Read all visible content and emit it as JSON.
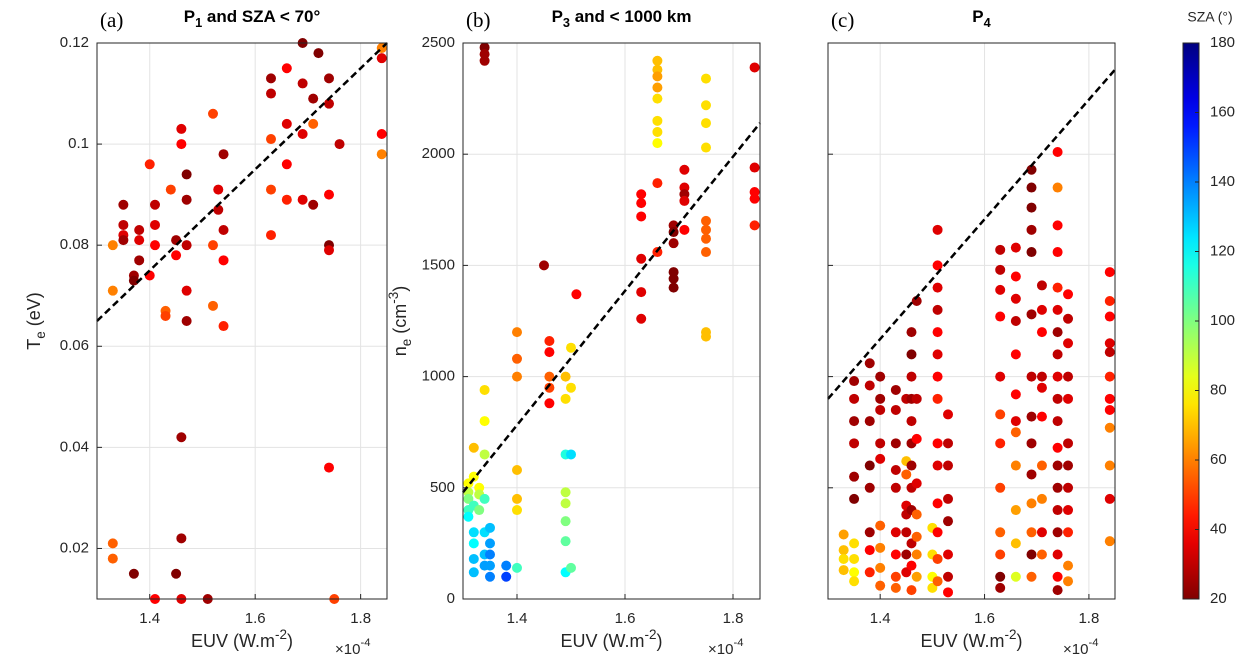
{
  "chart_data": [
    {
      "type": "scatter",
      "panel_label": "(a)",
      "title": [
        {
          "text": "P"
        },
        {
          "text": "1",
          "shift": "sub"
        },
        {
          "text": " and SZA < 70°"
        }
      ],
      "ylabel": [
        {
          "text": "T"
        },
        {
          "text": "e",
          "shift": "sub"
        },
        {
          "text": " (eV)"
        }
      ],
      "xlabel": [
        {
          "text": "EUV (W.m"
        },
        {
          "text": "-2",
          "shift": "sup"
        },
        {
          "text": ")"
        }
      ],
      "x_multiplier": [
        {
          "text": "×10"
        },
        {
          "text": "-4",
          "shift": "sup"
        }
      ],
      "xlim": [
        1.3,
        1.85
      ],
      "xticks": [
        1.4,
        1.6,
        1.8
      ],
      "ylim": [
        0.01,
        0.12
      ],
      "yticks": [
        0.02,
        0.04,
        0.06,
        0.08,
        0.1,
        0.12
      ],
      "ytick_labels": true,
      "grid": true,
      "fit_line": {
        "x": [
          1.3,
          1.85
        ],
        "y": [
          0.065,
          0.12
        ]
      },
      "x": [
        1.33,
        1.33,
        1.33,
        1.33,
        1.35,
        1.35,
        1.35,
        1.35,
        1.37,
        1.37,
        1.37,
        1.38,
        1.38,
        1.38,
        1.4,
        1.4,
        1.41,
        1.41,
        1.41,
        1.41,
        1.43,
        1.43,
        1.44,
        1.45,
        1.45,
        1.45,
        1.46,
        1.46,
        1.46,
        1.46,
        1.46,
        1.47,
        1.47,
        1.47,
        1.47,
        1.47,
        1.51,
        1.52,
        1.52,
        1.52,
        1.53,
        1.53,
        1.54,
        1.54,
        1.54,
        1.54,
        1.63,
        1.63,
        1.63,
        1.63,
        1.63,
        1.66,
        1.66,
        1.66,
        1.66,
        1.69,
        1.69,
        1.69,
        1.69,
        1.71,
        1.71,
        1.71,
        1.72,
        1.74,
        1.74,
        1.74,
        1.74,
        1.74,
        1.74,
        1.75,
        1.76,
        1.84,
        1.84,
        1.84,
        1.84
      ],
      "values": [
        0.08,
        0.071,
        0.021,
        0.018,
        0.088,
        0.084,
        0.082,
        0.081,
        0.074,
        0.073,
        0.015,
        0.083,
        0.081,
        0.077,
        0.096,
        0.074,
        0.088,
        0.084,
        0.08,
        0.01,
        0.067,
        0.066,
        0.091,
        0.081,
        0.078,
        0.015,
        0.103,
        0.1,
        0.042,
        0.022,
        0.01,
        0.094,
        0.089,
        0.08,
        0.071,
        0.065,
        0.01,
        0.106,
        0.08,
        0.068,
        0.091,
        0.087,
        0.098,
        0.083,
        0.077,
        0.064,
        0.113,
        0.11,
        0.101,
        0.091,
        0.082,
        0.115,
        0.104,
        0.096,
        0.089,
        0.12,
        0.112,
        0.102,
        0.089,
        0.109,
        0.104,
        0.088,
        0.118,
        0.113,
        0.108,
        0.09,
        0.08,
        0.079,
        0.036,
        0.01,
        0.1,
        0.102,
        0.098,
        0.117,
        0.119
      ],
      "sza": [
        60,
        60,
        55,
        55,
        25,
        30,
        35,
        25,
        25,
        20,
        20,
        30,
        35,
        25,
        45,
        40,
        30,
        35,
        40,
        40,
        55,
        50,
        50,
        25,
        40,
        20,
        35,
        40,
        25,
        25,
        35,
        20,
        25,
        30,
        35,
        25,
        25,
        50,
        50,
        55,
        35,
        30,
        25,
        30,
        40,
        45,
        25,
        30,
        50,
        50,
        45,
        40,
        35,
        40,
        45,
        20,
        30,
        35,
        35,
        25,
        55,
        25,
        20,
        25,
        30,
        40,
        20,
        35,
        40,
        50,
        30,
        40,
        60,
        35,
        60
      ]
    },
    {
      "type": "scatter",
      "panel_label": "(b)",
      "title": [
        {
          "text": "P"
        },
        {
          "text": "3",
          "shift": "sub"
        },
        {
          "text": " and < 1000 km"
        }
      ],
      "ylabel": [
        {
          "text": "n"
        },
        {
          "text": "e",
          "shift": "sub"
        },
        {
          "text": " (cm"
        },
        {
          "text": "-3",
          "shift": "sup"
        },
        {
          "text": ")"
        }
      ],
      "xlabel": [
        {
          "text": "EUV (W.m"
        },
        {
          "text": "-2",
          "shift": "sup"
        },
        {
          "text": ")"
        }
      ],
      "x_multiplier": [
        {
          "text": "×10"
        },
        {
          "text": "-4",
          "shift": "sup"
        }
      ],
      "xlim": [
        1.3,
        1.85
      ],
      "xticks": [
        1.4,
        1.6,
        1.8
      ],
      "ylim": [
        0,
        2500
      ],
      "yticks": [
        0,
        500,
        1000,
        1500,
        2000,
        2500
      ],
      "ytick_labels": true,
      "grid": true,
      "fit_line": {
        "x": [
          1.3,
          1.85
        ],
        "y": [
          480,
          2140
        ]
      },
      "x": [
        1.31,
        1.31,
        1.31,
        1.31,
        1.31,
        1.32,
        1.32,
        1.32,
        1.32,
        1.32,
        1.32,
        1.32,
        1.33,
        1.33,
        1.33,
        1.34,
        1.34,
        1.34,
        1.34,
        1.34,
        1.34,
        1.34,
        1.34,
        1.34,
        1.34,
        1.35,
        1.35,
        1.35,
        1.35,
        1.35,
        1.38,
        1.38,
        1.4,
        1.4,
        1.4,
        1.4,
        1.4,
        1.4,
        1.4,
        1.45,
        1.46,
        1.46,
        1.46,
        1.46,
        1.46,
        1.49,
        1.49,
        1.49,
        1.49,
        1.49,
        1.49,
        1.49,
        1.49,
        1.5,
        1.5,
        1.5,
        1.5,
        1.51,
        1.63,
        1.63,
        1.63,
        1.63,
        1.63,
        1.63,
        1.66,
        1.66,
        1.66,
        1.66,
        1.66,
        1.66,
        1.66,
        1.66,
        1.66,
        1.66,
        1.69,
        1.69,
        1.69,
        1.69,
        1.69,
        1.69,
        1.71,
        1.71,
        1.71,
        1.71,
        1.71,
        1.75,
        1.75,
        1.75,
        1.75,
        1.75,
        1.75,
        1.75,
        1.75,
        1.75,
        1.75,
        1.84,
        1.84,
        1.84,
        1.84,
        1.84
      ],
      "values": [
        520,
        480,
        450,
        400,
        370,
        680,
        550,
        420,
        300,
        250,
        180,
        120,
        500,
        470,
        400,
        2480,
        2450,
        2420,
        940,
        800,
        650,
        450,
        300,
        200,
        150,
        320,
        250,
        200,
        150,
        100,
        150,
        100,
        1200,
        1080,
        1000,
        580,
        450,
        400,
        140,
        1500,
        1160,
        1110,
        1000,
        950,
        880,
        1000,
        900,
        650,
        480,
        430,
        350,
        260,
        120,
        1130,
        950,
        650,
        140,
        1370,
        1820,
        1780,
        1720,
        1530,
        1380,
        1260,
        2420,
        2380,
        2350,
        2300,
        2250,
        2150,
        2100,
        2050,
        1870,
        1560,
        1680,
        1650,
        1600,
        1470,
        1440,
        1400,
        1930,
        1850,
        1820,
        1790,
        1660,
        2340,
        2220,
        2140,
        2030,
        1700,
        1660,
        1620,
        1560,
        1200,
        1180,
        2390,
        1940,
        1830,
        1800,
        1680
      ],
      "sza": [
        80,
        90,
        100,
        110,
        120,
        70,
        80,
        110,
        125,
        120,
        130,
        130,
        80,
        90,
        100,
        20,
        25,
        25,
        75,
        80,
        90,
        110,
        125,
        130,
        135,
        130,
        135,
        140,
        135,
        140,
        140,
        150,
        60,
        55,
        60,
        70,
        70,
        75,
        110,
        25,
        45,
        40,
        55,
        50,
        40,
        70,
        75,
        115,
        90,
        90,
        100,
        105,
        120,
        75,
        75,
        125,
        105,
        40,
        40,
        40,
        40,
        35,
        35,
        35,
        70,
        70,
        65,
        65,
        75,
        75,
        75,
        80,
        45,
        45,
        25,
        20,
        25,
        20,
        20,
        20,
        35,
        35,
        25,
        35,
        40,
        75,
        75,
        75,
        75,
        55,
        55,
        55,
        55,
        70,
        70,
        35,
        35,
        40,
        40,
        45
      ]
    },
    {
      "type": "scatter",
      "panel_label": "(c)",
      "title": [
        {
          "text": "P"
        },
        {
          "text": "4",
          "shift": "sub"
        }
      ],
      "xlabel": [
        {
          "text": "EUV (W.m"
        },
        {
          "text": "-2",
          "shift": "sup"
        },
        {
          "text": ")"
        }
      ],
      "x_multiplier": [
        {
          "text": "×10"
        },
        {
          "text": "-4",
          "shift": "sup"
        }
      ],
      "xlim": [
        1.3,
        1.85
      ],
      "xticks": [
        1.4,
        1.6,
        1.8
      ],
      "ylim": [
        0,
        2500
      ],
      "yticks": [
        0,
        500,
        1000,
        1500,
        2000,
        2500
      ],
      "ytick_labels": false,
      "grid": true,
      "fit_line": {
        "x": [
          1.3,
          1.85
        ],
        "y": [
          900,
          2380
        ]
      },
      "x": [
        1.33,
        1.33,
        1.33,
        1.33,
        1.35,
        1.35,
        1.35,
        1.35,
        1.35,
        1.35,
        1.35,
        1.35,
        1.35,
        1.35,
        1.38,
        1.38,
        1.38,
        1.38,
        1.38,
        1.38,
        1.38,
        1.38,
        1.4,
        1.4,
        1.4,
        1.4,
        1.4,
        1.4,
        1.4,
        1.4,
        1.4,
        1.43,
        1.43,
        1.43,
        1.43,
        1.43,
        1.43,
        1.43,
        1.43,
        1.43,
        1.45,
        1.45,
        1.45,
        1.45,
        1.45,
        1.45,
        1.45,
        1.45,
        1.46,
        1.46,
        1.46,
        1.46,
        1.46,
        1.46,
        1.46,
        1.46,
        1.46,
        1.46,
        1.46,
        1.46,
        1.47,
        1.47,
        1.47,
        1.47,
        1.47,
        1.47,
        1.47,
        1.47,
        1.5,
        1.5,
        1.5,
        1.5,
        1.51,
        1.51,
        1.51,
        1.51,
        1.51,
        1.51,
        1.51,
        1.51,
        1.51,
        1.51,
        1.51,
        1.51,
        1.51,
        1.51,
        1.53,
        1.53,
        1.53,
        1.53,
        1.53,
        1.53,
        1.53,
        1.53,
        1.63,
        1.63,
        1.63,
        1.63,
        1.63,
        1.63,
        1.63,
        1.63,
        1.63,
        1.63,
        1.63,
        1.63,
        1.66,
        1.66,
        1.66,
        1.66,
        1.66,
        1.66,
        1.66,
        1.66,
        1.66,
        1.66,
        1.66,
        1.66,
        1.69,
        1.69,
        1.69,
        1.69,
        1.69,
        1.69,
        1.69,
        1.69,
        1.69,
        1.69,
        1.69,
        1.69,
        1.69,
        1.69,
        1.71,
        1.71,
        1.71,
        1.71,
        1.71,
        1.71,
        1.71,
        1.71,
        1.71,
        1.71,
        1.74,
        1.74,
        1.74,
        1.74,
        1.74,
        1.74,
        1.74,
        1.74,
        1.74,
        1.74,
        1.74,
        1.74,
        1.74,
        1.74,
        1.74,
        1.74,
        1.74,
        1.74,
        1.74,
        1.76,
        1.76,
        1.76,
        1.76,
        1.76,
        1.76,
        1.76,
        1.76,
        1.76,
        1.76,
        1.76,
        1.76,
        1.84,
        1.84,
        1.84,
        1.84,
        1.84,
        1.84,
        1.84,
        1.84,
        1.84,
        1.84,
        1.84,
        1.84
      ],
      "values": [
        290,
        220,
        180,
        130,
        980,
        900,
        800,
        700,
        550,
        450,
        250,
        180,
        120,
        80,
        1060,
        960,
        800,
        600,
        500,
        300,
        220,
        120,
        1000,
        900,
        850,
        700,
        630,
        330,
        230,
        140,
        60,
        940,
        850,
        700,
        580,
        500,
        300,
        200,
        100,
        50,
        900,
        620,
        560,
        420,
        380,
        300,
        200,
        120,
        1200,
        1100,
        1000,
        900,
        800,
        700,
        600,
        500,
        400,
        250,
        150,
        40,
        1340,
        900,
        720,
        520,
        380,
        280,
        200,
        100,
        320,
        200,
        100,
        50,
        1660,
        1500,
        1400,
        1300,
        1200,
        1100,
        1000,
        900,
        700,
        600,
        430,
        300,
        180,
        80,
        830,
        700,
        600,
        450,
        350,
        200,
        100,
        30,
        1570,
        1480,
        1390,
        1270,
        1000,
        830,
        700,
        500,
        300,
        200,
        100,
        50,
        1580,
        1450,
        1350,
        1250,
        1100,
        920,
        800,
        750,
        600,
        400,
        250,
        100,
        1930,
        1850,
        1760,
        1660,
        1560,
        1280,
        1000,
        820,
        700,
        560,
        430,
        300,
        200,
        100,
        1410,
        1300,
        1200,
        1000,
        950,
        820,
        600,
        450,
        300,
        200,
        2010,
        1850,
        1680,
        1560,
        1400,
        1300,
        1200,
        1100,
        1000,
        900,
        800,
        680,
        600,
        500,
        400,
        300,
        200,
        100,
        40,
        1370,
        1260,
        1150,
        1000,
        900,
        700,
        600,
        500,
        400,
        300,
        150,
        80,
        1470,
        1340,
        1270,
        1150,
        1110,
        1000,
        900,
        850,
        770,
        600,
        450,
        260
      ],
      "sza": [
        65,
        70,
        75,
        70,
        25,
        30,
        25,
        30,
        25,
        20,
        75,
        75,
        80,
        75,
        25,
        30,
        25,
        20,
        25,
        25,
        40,
        45,
        25,
        25,
        30,
        30,
        35,
        55,
        60,
        60,
        55,
        25,
        30,
        25,
        30,
        30,
        35,
        40,
        50,
        55,
        30,
        70,
        55,
        35,
        30,
        30,
        25,
        35,
        25,
        20,
        30,
        25,
        30,
        25,
        25,
        30,
        25,
        30,
        40,
        50,
        25,
        30,
        40,
        35,
        55,
        55,
        60,
        65,
        75,
        75,
        80,
        75,
        35,
        40,
        35,
        30,
        40,
        35,
        40,
        45,
        40,
        35,
        40,
        40,
        50,
        55,
        35,
        30,
        30,
        30,
        25,
        35,
        30,
        40,
        30,
        30,
        35,
        40,
        35,
        50,
        45,
        50,
        55,
        50,
        20,
        25,
        35,
        40,
        35,
        30,
        40,
        40,
        35,
        55,
        60,
        65,
        70,
        85,
        20,
        20,
        20,
        25,
        20,
        25,
        30,
        25,
        25,
        25,
        60,
        55,
        20,
        55,
        30,
        35,
        40,
        30,
        35,
        40,
        55,
        60,
        35,
        55,
        40,
        60,
        40,
        40,
        45,
        35,
        25,
        30,
        35,
        30,
        30,
        40,
        25,
        25,
        30,
        25,
        35,
        40,
        25,
        40,
        30,
        35,
        30,
        35,
        30,
        25,
        30,
        35,
        45,
        60,
        60,
        40,
        45,
        40,
        35,
        30,
        45,
        40,
        40,
        60,
        60,
        35,
        60
      ]
    }
  ],
  "colorbar": {
    "label": "SZA (°)",
    "clim": [
      20,
      180
    ],
    "ticks": [
      20,
      40,
      60,
      80,
      100,
      120,
      140,
      160,
      180
    ],
    "colormap": "jet",
    "reversed": true
  }
}
